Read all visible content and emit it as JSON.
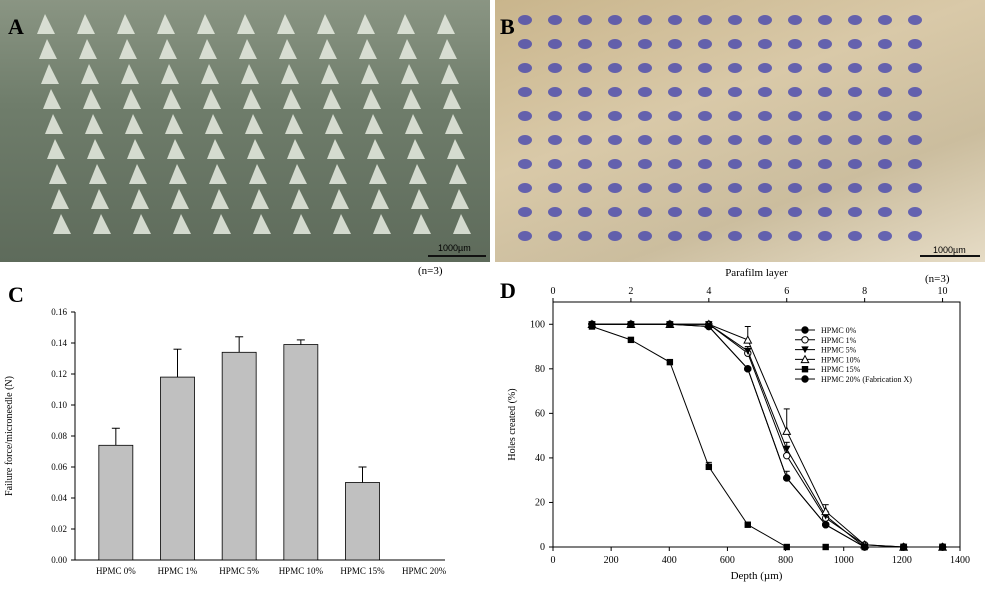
{
  "panels": {
    "a_label": "A",
    "b_label": "B",
    "c_label": "C",
    "d_label": "D"
  },
  "scale_bar_a": "1000µm",
  "scale_bar_b": "1000µm",
  "n_note_c": "(n=3)",
  "n_note_d": "(n=3)",
  "chart_data": [
    {
      "type": "bar",
      "panel": "C",
      "title": "",
      "xlabel": "",
      "ylabel": "Failure force/microneedle (N)",
      "categories": [
        "HPMC 0%",
        "HPMC 1%",
        "HPMC 5%",
        "HPMC 10%",
        "HPMC 15%",
        "HPMC 20%"
      ],
      "values": [
        0.074,
        0.118,
        0.134,
        0.139,
        0.05,
        0
      ],
      "error_plus": [
        0.011,
        0.018,
        0.01,
        0.003,
        0.01,
        0
      ],
      "ylim": [
        0,
        0.16
      ],
      "yticks": [
        "0.00",
        "0.02",
        "0.04",
        "0.06",
        "0.08",
        "0.10",
        "0.12",
        "0.14",
        "0.16"
      ],
      "bar_color": "#c0c0c0",
      "grid": false
    },
    {
      "type": "line",
      "panel": "D",
      "title": "",
      "xlabel": "Depth (µm)",
      "ylabel": "Holes created (%)",
      "top_xlabel": "Parafilm layer",
      "xlim": [
        0,
        1400
      ],
      "ylim": [
        0,
        110
      ],
      "xticks": [
        "0",
        "200",
        "400",
        "600",
        "800",
        "1000",
        "1200",
        "1400"
      ],
      "top_xticks": [
        "0",
        "2",
        "4",
        "6",
        "8",
        "10"
      ],
      "yticks": [
        "0",
        "20",
        "40",
        "60",
        "80",
        "100"
      ],
      "x": [
        134,
        268,
        402,
        536,
        670,
        804,
        938,
        1072,
        1206,
        1340
      ],
      "series": [
        {
          "name": "HPMC  0%",
          "marker": "filled-circle",
          "values": [
            100,
            100,
            100,
            99,
            80,
            31,
            10,
            0,
            0,
            0
          ],
          "err": [
            0,
            0,
            0,
            0,
            0,
            3,
            1,
            0,
            0,
            0
          ]
        },
        {
          "name": "HPMC  1%",
          "marker": "open-circle",
          "values": [
            100,
            100,
            100,
            100,
            87,
            41,
            13,
            1,
            0,
            0
          ],
          "err": [
            0,
            0,
            0,
            0,
            2,
            4,
            2,
            0,
            0,
            0
          ]
        },
        {
          "name": "HPMC  5%",
          "marker": "filled-triangle-down",
          "values": [
            100,
            100,
            100,
            100,
            88,
            44,
            14,
            0,
            0,
            0
          ],
          "err": [
            0,
            0,
            0,
            0,
            2,
            3,
            2,
            0,
            0,
            0
          ]
        },
        {
          "name": "HPMC  10%",
          "marker": "open-triangle-up",
          "values": [
            100,
            100,
            100,
            100,
            93,
            52,
            16,
            1,
            0,
            0
          ],
          "err": [
            0,
            0,
            0,
            0,
            6,
            10,
            3,
            0,
            0,
            0
          ]
        },
        {
          "name": "HPMC  15%",
          "marker": "filled-square",
          "values": [
            99,
            93,
            83,
            36,
            10,
            0,
            0,
            0,
            0,
            0
          ],
          "err": [
            0,
            1,
            1,
            2,
            0,
            0,
            0,
            0,
            0,
            0
          ]
        },
        {
          "name": "HPMC  20%  (Fabrication X)",
          "marker": "filled-circle",
          "values": [
            100,
            100,
            100,
            99,
            80,
            31,
            10,
            0,
            0,
            0
          ],
          "err": [
            0,
            0,
            0,
            0,
            0,
            0,
            0,
            0,
            0,
            0
          ]
        }
      ],
      "legend": "top-right",
      "grid": false
    }
  ]
}
